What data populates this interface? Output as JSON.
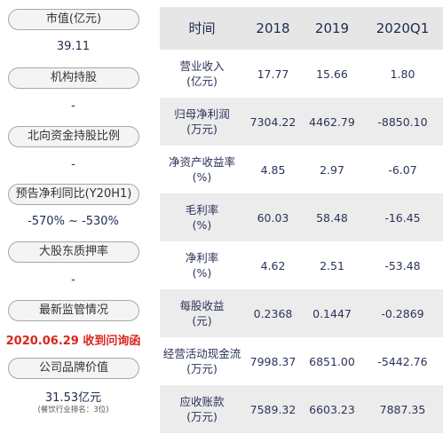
{
  "left_panel": {
    "items": [
      {
        "label": "市值(亿元)",
        "value": "39.11"
      },
      {
        "label": "机构持股",
        "value": "-"
      },
      {
        "label": "北向资金持股比例",
        "value": "-"
      },
      {
        "label": "预告净利同比(Y20H1)",
        "value": "-570% ~ -530%"
      },
      {
        "label": "大股东质押率",
        "value": "-"
      },
      {
        "label": "最新监管情况",
        "value": "2020.06.29 收到问询函"
      },
      {
        "label": "公司品牌价值",
        "value": "31.53亿元",
        "note": "(餐饮行业排名：3位)"
      }
    ]
  },
  "table": {
    "headers": [
      "时间",
      "2018",
      "2019",
      "2020Q1"
    ],
    "rows": [
      {
        "label": [
          "营业收入",
          "(亿元)"
        ],
        "values": [
          "17.77",
          "15.66",
          "1.80"
        ]
      },
      {
        "label": [
          "归母净利润",
          "(万元)"
        ],
        "values": [
          "7304.22",
          "4462.79",
          "-8850.10"
        ]
      },
      {
        "label": [
          "净资产收益率",
          "(%)"
        ],
        "values": [
          "4.85",
          "2.97",
          "-6.07"
        ]
      },
      {
        "label": [
          "毛利率",
          "(%)"
        ],
        "values": [
          "60.03",
          "58.48",
          "-16.45"
        ]
      },
      {
        "label": [
          "净利率",
          "(%)"
        ],
        "values": [
          "4.62",
          "2.51",
          "-53.48"
        ]
      },
      {
        "label": [
          "每股收益",
          "(元)"
        ],
        "values": [
          "0.2368",
          "0.1447",
          "-0.2869"
        ]
      },
      {
        "label": [
          "经营活动现金流",
          "(万元)"
        ],
        "values": [
          "7998.37",
          "6851.00",
          "-5442.76"
        ]
      },
      {
        "label": [
          "应收账款",
          "(万元)"
        ],
        "values": [
          "7589.32",
          "6603.23",
          "7887.35"
        ]
      }
    ]
  }
}
